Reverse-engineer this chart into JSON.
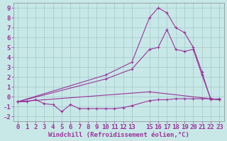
{
  "title": "",
  "xlabel": "Windchill (Refroidissement éolien,°C)",
  "bg_color": "#c8e8e8",
  "grid_color": "#a8cccc",
  "line_color": "#993399",
  "xlim": [
    -0.5,
    23.5
  ],
  "ylim": [
    -2.5,
    9.5
  ],
  "xtick_labels": [
    "0",
    "1",
    "2",
    "3",
    "4",
    "5",
    "6",
    "7",
    "8",
    "9",
    "10",
    "11",
    "12",
    "13",
    "15",
    "16",
    "17",
    "18",
    "19",
    "20",
    "21",
    "22",
    "23"
  ],
  "xtick_pos": [
    0,
    1,
    2,
    3,
    4,
    5,
    6,
    7,
    8,
    9,
    10,
    11,
    12,
    13,
    15,
    16,
    17,
    18,
    19,
    20,
    21,
    22,
    23
  ],
  "ytick_labels": [
    "-2",
    "-1",
    "0",
    "1",
    "2",
    "3",
    "4",
    "5",
    "6",
    "7",
    "8",
    "9"
  ],
  "ytick_pos": [
    -2,
    -1,
    0,
    1,
    2,
    3,
    4,
    5,
    6,
    7,
    8,
    9
  ],
  "line1_x": [
    0,
    1,
    2,
    3,
    4,
    5,
    6,
    7,
    8,
    9,
    10,
    11,
    12,
    13,
    15,
    16,
    17,
    18,
    19,
    20,
    21,
    22,
    23
  ],
  "line1_y": [
    -0.5,
    -0.5,
    -0.3,
    -0.7,
    -0.8,
    -1.5,
    -0.8,
    -1.2,
    -1.2,
    -1.2,
    -1.2,
    -1.2,
    -1.1,
    -0.9,
    -0.4,
    -0.3,
    -0.3,
    -0.2,
    -0.2,
    -0.2,
    -0.2,
    -0.2,
    -0.3
  ],
  "line2_x": [
    0,
    15,
    23
  ],
  "line2_y": [
    -0.5,
    0.5,
    -0.3
  ],
  "line3_x": [
    0,
    10,
    13,
    15,
    16,
    17,
    18,
    19,
    20,
    21,
    22,
    23
  ],
  "line3_y": [
    -0.5,
    2.2,
    3.5,
    8.0,
    9.0,
    8.5,
    7.0,
    6.5,
    5.0,
    2.5,
    -0.3,
    -0.2
  ],
  "line4_x": [
    0,
    10,
    13,
    15,
    16,
    17,
    18,
    19,
    20,
    21,
    22,
    23
  ],
  "line4_y": [
    -0.5,
    1.8,
    2.8,
    4.8,
    5.0,
    6.8,
    4.8,
    4.6,
    4.8,
    2.2,
    -0.2,
    -0.3
  ],
  "tick_fontsize": 6.5,
  "label_fontsize": 6.5
}
